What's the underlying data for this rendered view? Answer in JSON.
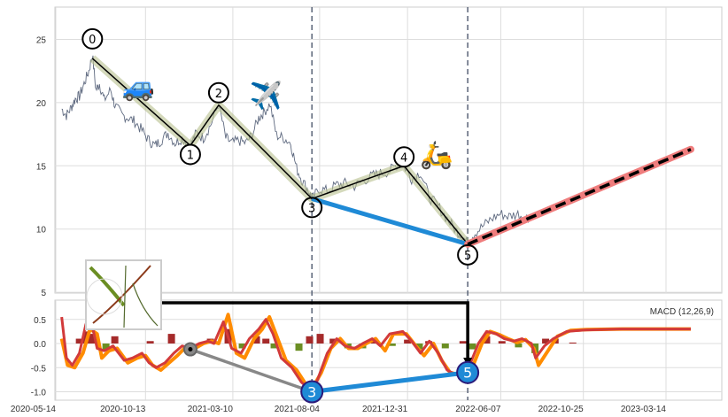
{
  "chart_data": [
    {
      "type": "line",
      "panel": "price",
      "x_unit": "days since 2020-05-14",
      "x_origin": "2020-05-14",
      "ylim": [
        4.8,
        27.5
      ],
      "yticks": [
        5,
        10,
        15,
        20,
        25
      ],
      "grid": true,
      "price_series": [
        [
          10,
          19.5
        ],
        [
          18,
          19.0
        ],
        [
          26,
          19.6
        ],
        [
          33,
          20.3
        ],
        [
          40,
          20.5
        ],
        [
          48,
          21.5
        ],
        [
          56,
          22.5
        ],
        [
          62,
          23.8
        ],
        [
          68,
          21.0
        ],
        [
          74,
          21.5
        ],
        [
          82,
          20.2
        ],
        [
          93,
          21.0
        ],
        [
          100,
          19.8
        ],
        [
          112,
          19.0
        ],
        [
          123,
          18.8
        ],
        [
          134,
          18.5
        ],
        [
          146,
          17.8
        ],
        [
          158,
          17.0
        ],
        [
          168,
          16.6
        ],
        [
          178,
          17.0
        ],
        [
          190,
          17.6
        ],
        [
          202,
          16.8
        ],
        [
          214,
          17.2
        ],
        [
          228,
          16.6
        ],
        [
          238,
          17.6
        ],
        [
          250,
          17.2
        ],
        [
          262,
          18.2
        ],
        [
          276,
          19.9
        ],
        [
          288,
          17.2
        ],
        [
          298,
          16.8
        ],
        [
          310,
          17.0
        ],
        [
          322,
          16.8
        ],
        [
          333,
          17.5
        ],
        [
          344,
          18.8
        ],
        [
          352,
          19.2
        ],
        [
          363,
          19.9
        ],
        [
          374,
          17.4
        ],
        [
          386,
          17.2
        ],
        [
          398,
          16.8
        ],
        [
          408,
          14.8
        ],
        [
          418,
          13.8
        ],
        [
          430,
          12.9
        ],
        [
          434,
          12.3
        ],
        [
          446,
          13.2
        ],
        [
          460,
          13.0
        ],
        [
          476,
          13.5
        ],
        [
          490,
          13.6
        ],
        [
          506,
          13.4
        ],
        [
          520,
          13.8
        ],
        [
          536,
          14.2
        ],
        [
          550,
          14.4
        ],
        [
          566,
          14.6
        ],
        [
          580,
          15.2
        ],
        [
          590,
          15.0
        ],
        [
          603,
          14.0
        ],
        [
          618,
          14.5
        ],
        [
          633,
          12.5
        ],
        [
          648,
          11.8
        ],
        [
          663,
          10.8
        ],
        [
          678,
          9.9
        ],
        [
          688,
          9.5
        ],
        [
          698,
          8.9
        ],
        [
          708,
          9.6
        ],
        [
          723,
          10.2
        ],
        [
          738,
          10.8
        ],
        [
          753,
          11.2
        ],
        [
          768,
          11.0
        ],
        [
          783,
          11.2
        ],
        [
          798,
          10.9
        ],
        [
          806,
          11.0
        ]
      ],
      "pivots": [
        {
          "label": "0",
          "x": 62,
          "y": 23.5
        },
        {
          "label": "1",
          "x": 228,
          "y": 16.6
        },
        {
          "label": "2",
          "x": 276,
          "y": 19.8
        },
        {
          "label": "3",
          "x": 434,
          "y": 12.4
        },
        {
          "label": "4",
          "x": 590,
          "y": 15.0
        },
        {
          "label": "5",
          "x": 698,
          "y": 8.8
        }
      ],
      "projection": {
        "from": [
          698,
          8.8
        ],
        "to": [
          1076,
          16.3
        ]
      },
      "vlines_days": [
        434,
        698
      ],
      "emoji_annotations": [
        {
          "symbol": "🚙",
          "name": "car",
          "x": 140,
          "y": 21.4
        },
        {
          "symbol": "✈️",
          "name": "airplane",
          "x": 356,
          "y": 20.7
        },
        {
          "symbol": "🛵",
          "name": "scooter",
          "x": 645,
          "y": 16.0
        }
      ]
    },
    {
      "type": "line",
      "panel": "macd",
      "title": "MACD (12,26,9)",
      "x_unit": "days since 2020-05-14",
      "ylim": [
        -1.1,
        0.9
      ],
      "yticks": [
        -1.0,
        -0.5,
        0.0,
        0.5
      ],
      "xticks": [
        "2020-05-14",
        "2020-10-13",
        "2021-03-10",
        "2021-08-04",
        "2021-12-31",
        "2022-06-07",
        "2022-10-25",
        "2023-03-14"
      ],
      "macd": [
        [
          10,
          0.55
        ],
        [
          18,
          -0.3
        ],
        [
          28,
          -0.45
        ],
        [
          40,
          -0.2
        ],
        [
          51,
          0.4
        ],
        [
          63,
          0.3
        ],
        [
          70,
          -0.1
        ],
        [
          82,
          -0.15
        ],
        [
          97,
          -0.05
        ],
        [
          116,
          -0.35
        ],
        [
          130,
          -0.3
        ],
        [
          146,
          -0.2
        ],
        [
          158,
          -0.4
        ],
        [
          170,
          -0.5
        ],
        [
          185,
          -0.4
        ],
        [
          200,
          -0.2
        ],
        [
          214,
          -0.05
        ],
        [
          228,
          -0.1
        ],
        [
          243,
          0.0
        ],
        [
          258,
          0.05
        ],
        [
          268,
          0.0
        ],
        [
          284,
          0.45
        ],
        [
          298,
          -0.1
        ],
        [
          314,
          -0.2
        ],
        [
          328,
          0.1
        ],
        [
          344,
          0.3
        ],
        [
          356,
          0.5
        ],
        [
          368,
          0.2
        ],
        [
          382,
          -0.3
        ],
        [
          400,
          -0.5
        ],
        [
          416,
          -0.8
        ],
        [
          430,
          -0.95
        ],
        [
          442,
          -0.8
        ],
        [
          460,
          -0.2
        ],
        [
          476,
          0.1
        ],
        [
          490,
          -0.05
        ],
        [
          506,
          -0.1
        ],
        [
          520,
          0.0
        ],
        [
          536,
          0.1
        ],
        [
          550,
          -0.05
        ],
        [
          566,
          0.2
        ],
        [
          588,
          0.25
        ],
        [
          603,
          0.05
        ],
        [
          618,
          -0.2
        ],
        [
          633,
          0.05
        ],
        [
          648,
          -0.2
        ],
        [
          663,
          -0.55
        ],
        [
          678,
          -0.65
        ],
        [
          698,
          -0.55
        ],
        [
          716,
          0.0
        ],
        [
          730,
          0.25
        ],
        [
          746,
          0.2
        ],
        [
          760,
          0.1
        ],
        [
          776,
          0.05
        ],
        [
          790,
          0.1
        ],
        [
          806,
          0.0
        ],
        [
          813,
          -0.3
        ],
        [
          828,
          -0.05
        ],
        [
          843,
          0.1
        ],
        [
          866,
          0.25
        ],
        [
          896,
          0.28
        ],
        [
          956,
          0.3
        ],
        [
          1076,
          0.3
        ]
      ],
      "signal": [
        [
          10,
          0.1
        ],
        [
          20,
          -0.45
        ],
        [
          32,
          -0.5
        ],
        [
          46,
          -0.2
        ],
        [
          58,
          0.3
        ],
        [
          70,
          0.2
        ],
        [
          78,
          -0.3
        ],
        [
          90,
          -0.15
        ],
        [
          104,
          -0.1
        ],
        [
          122,
          -0.4
        ],
        [
          138,
          -0.3
        ],
        [
          152,
          -0.25
        ],
        [
          164,
          -0.45
        ],
        [
          178,
          -0.55
        ],
        [
          192,
          -0.4
        ],
        [
          206,
          -0.25
        ],
        [
          222,
          -0.05
        ],
        [
          236,
          -0.1
        ],
        [
          250,
          0.0
        ],
        [
          264,
          0.05
        ],
        [
          276,
          0.0
        ],
        [
          292,
          0.6
        ],
        [
          306,
          -0.2
        ],
        [
          320,
          -0.3
        ],
        [
          336,
          0.1
        ],
        [
          350,
          0.3
        ],
        [
          362,
          0.55
        ],
        [
          376,
          0.1
        ],
        [
          390,
          -0.35
        ],
        [
          408,
          -0.55
        ],
        [
          424,
          -0.85
        ],
        [
          436,
          -0.9
        ],
        [
          450,
          -0.6
        ],
        [
          466,
          -0.1
        ],
        [
          482,
          0.1
        ],
        [
          496,
          -0.1
        ],
        [
          512,
          -0.1
        ],
        [
          526,
          0.0
        ],
        [
          542,
          0.1
        ],
        [
          558,
          -0.15
        ],
        [
          572,
          0.2
        ],
        [
          594,
          0.2
        ],
        [
          610,
          -0.05
        ],
        [
          624,
          -0.25
        ],
        [
          640,
          0.0
        ],
        [
          654,
          -0.35
        ],
        [
          668,
          -0.6
        ],
        [
          684,
          -0.65
        ],
        [
          704,
          -0.55
        ],
        [
          722,
          0.0
        ],
        [
          736,
          0.25
        ],
        [
          752,
          0.18
        ],
        [
          766,
          0.1
        ],
        [
          782,
          0.02
        ],
        [
          796,
          0.08
        ],
        [
          810,
          -0.1
        ],
        [
          818,
          -0.45
        ],
        [
          834,
          -0.15
        ],
        [
          850,
          0.15
        ],
        [
          872,
          0.27
        ],
        [
          900,
          0.29
        ],
        [
          960,
          0.3
        ],
        [
          1076,
          0.3
        ]
      ],
      "histogram": [
        [
          40,
          0.1
        ],
        [
          52,
          0.25
        ],
        [
          60,
          0.2
        ],
        [
          85,
          -0.15
        ],
        [
          100,
          0.15
        ],
        [
          160,
          0.05
        ],
        [
          196,
          0.2
        ],
        [
          228,
          -0.1
        ],
        [
          262,
          0.1
        ],
        [
          292,
          0.3
        ],
        [
          316,
          -0.1
        ],
        [
          340,
          0.15
        ],
        [
          356,
          0.1
        ],
        [
          370,
          -0.1
        ],
        [
          412,
          -0.15
        ],
        [
          430,
          0.15
        ],
        [
          448,
          0.2
        ],
        [
          470,
          0.1
        ],
        [
          495,
          -0.1
        ],
        [
          520,
          -0.1
        ],
        [
          540,
          0.1
        ],
        [
          570,
          -0.05
        ],
        [
          596,
          0.08
        ],
        [
          616,
          -0.12
        ],
        [
          632,
          0.05
        ],
        [
          660,
          -0.1
        ],
        [
          690,
          0.05
        ],
        [
          706,
          -0.12
        ],
        [
          730,
          0.15
        ],
        [
          756,
          0.05
        ],
        [
          784,
          -0.08
        ],
        [
          812,
          -0.2
        ],
        [
          830,
          0.1
        ],
        [
          846,
          0.1
        ],
        [
          876,
          0.02
        ]
      ],
      "markers": [
        {
          "label": "",
          "x": 228,
          "y": -0.12,
          "color": "#888888"
        },
        {
          "label": "3",
          "x": 434,
          "y": -1.0,
          "color": "#1f8ad6"
        },
        {
          "label": "5",
          "x": 698,
          "y": -0.6,
          "color": "#1f8ad6"
        }
      ],
      "colors": {
        "macd": "#d23a3a",
        "signal": "#ff8c00",
        "hist_pos": "#a52a2a",
        "hist_neg": "#6b8e23",
        "pivot_line": "#1f8ad6",
        "projection": "#ef7d7d"
      }
    }
  ]
}
